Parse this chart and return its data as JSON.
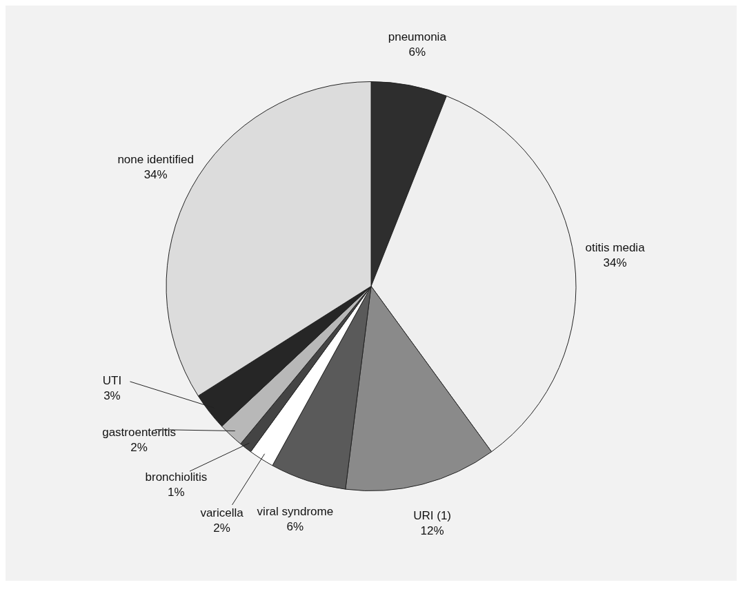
{
  "chart_data": {
    "type": "pie",
    "categories": [
      "pneumonia",
      "otitis media",
      "URI (1)",
      "viral syndrome",
      "varicella",
      "bronchiolitis",
      "gastroenteritis",
      "UTI",
      "none identified"
    ],
    "values": [
      6,
      34,
      12,
      6,
      2,
      1,
      2,
      3,
      34
    ],
    "value_labels": [
      "6%",
      "34%",
      "12%",
      "6%",
      "2%",
      "1%",
      "2%",
      "3%",
      "34%"
    ],
    "colors": [
      "#2e2e2e",
      "#efefef",
      "#8a8a8a",
      "#5a5a5a",
      "#ffffff",
      "#444444",
      "#b8b8b8",
      "#262626",
      "#dcdcdc"
    ],
    "legend": false
  }
}
